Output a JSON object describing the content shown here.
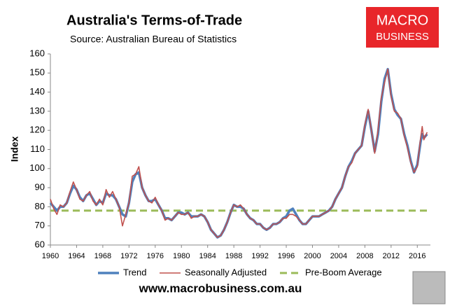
{
  "chart_data": {
    "type": "line",
    "title": "Australia's Terms-of-Trade",
    "subtitle": "Source: Australian Bureau of Statistics",
    "y_label": "Index",
    "logo": {
      "line1": "MACRO",
      "line2": "BUSINESS",
      "color": "#e8262a"
    },
    "website": "www.macrobusiness.com.au",
    "xlim": [
      1960,
      2018
    ],
    "xticks": [
      1960,
      1964,
      1968,
      1972,
      1976,
      1980,
      1984,
      1988,
      1992,
      1996,
      2000,
      2004,
      2008,
      2012,
      2016
    ],
    "ylim": [
      60,
      160
    ],
    "yticks": [
      60,
      70,
      80,
      90,
      100,
      110,
      120,
      130,
      140,
      150,
      160
    ],
    "grid": false,
    "legend": "bottom",
    "x": [
      1960,
      1960.5,
      1961,
      1961.5,
      1962,
      1962.5,
      1963,
      1963.5,
      1964,
      1964.5,
      1965,
      1965.5,
      1966,
      1966.5,
      1967,
      1967.5,
      1968,
      1968.5,
      1969,
      1969.5,
      1970,
      1970.5,
      1971,
      1971.5,
      1972,
      1972.5,
      1973,
      1973.5,
      1974,
      1974.5,
      1975,
      1975.5,
      1976,
      1976.5,
      1977,
      1977.5,
      1978,
      1978.5,
      1979,
      1979.5,
      1980,
      1980.5,
      1981,
      1981.5,
      1982,
      1982.5,
      1983,
      1983.5,
      1984,
      1984.5,
      1985,
      1985.5,
      1986,
      1986.5,
      1987,
      1987.5,
      1988,
      1988.5,
      1989,
      1989.5,
      1990,
      1990.5,
      1991,
      1991.5,
      1992,
      1992.5,
      1993,
      1993.5,
      1994,
      1994.5,
      1995,
      1995.5,
      1996,
      1996.5,
      1997,
      1997.5,
      1998,
      1998.5,
      1999,
      1999.5,
      2000,
      2000.5,
      2001,
      2001.5,
      2002,
      2002.5,
      2003,
      2003.5,
      2004,
      2004.5,
      2005,
      2005.5,
      2006,
      2006.5,
      2007,
      2007.5,
      2008,
      2008.5,
      2009,
      2009.5,
      2010,
      2010.5,
      2011,
      2011.5,
      2012,
      2012.5,
      2013,
      2013.5,
      2014,
      2014.5,
      2015,
      2015.5,
      2016,
      2016.5,
      2016.75,
      2017,
      2017.5
    ],
    "series": [
      {
        "name": "Trend",
        "color": "#4f81bd",
        "values": [
          82,
          80,
          78,
          80,
          80,
          82,
          87,
          91,
          89,
          85,
          83,
          86,
          87,
          84,
          81,
          83,
          82,
          87,
          86,
          86,
          84,
          80,
          76,
          75,
          82,
          93,
          97,
          98,
          90,
          86,
          83,
          83,
          84,
          81,
          78,
          74,
          74,
          73,
          75,
          77,
          77,
          76,
          77,
          75,
          75,
          75,
          76,
          75,
          72,
          68,
          66,
          64,
          65,
          68,
          72,
          77,
          81,
          80,
          80,
          79,
          76,
          74,
          73,
          71,
          71,
          69,
          68,
          69,
          71,
          71,
          72,
          74,
          75,
          78,
          79,
          76,
          73,
          71,
          71,
          73,
          75,
          75,
          75,
          76,
          77,
          78,
          80,
          84,
          87,
          90,
          96,
          101,
          104,
          108,
          110,
          112,
          122,
          130,
          120,
          109,
          118,
          135,
          147,
          152,
          139,
          131,
          128,
          126,
          118,
          112,
          104,
          98,
          102,
          114,
          118,
          116,
          118
        ]
      },
      {
        "name": "Seasonally Adjusted",
        "color": "#c0504d",
        "values": [
          84,
          79,
          76,
          81,
          80,
          82,
          88,
          93,
          89,
          84,
          83,
          86,
          88,
          83,
          81,
          84,
          81,
          89,
          85,
          88,
          84,
          80,
          70,
          76,
          82,
          96,
          97,
          101,
          90,
          86,
          83,
          82,
          85,
          81,
          78,
          73,
          74,
          73,
          75,
          77,
          76,
          76,
          77,
          74,
          75,
          75,
          76,
          75,
          72,
          68,
          66,
          64,
          65,
          68,
          72,
          77,
          81,
          80,
          81,
          79,
          76,
          74,
          73,
          71,
          71,
          69,
          68,
          69,
          71,
          71,
          72,
          74,
          74,
          76,
          76,
          75,
          73,
          71,
          71,
          73,
          75,
          75,
          75,
          76,
          77,
          78,
          80,
          84,
          87,
          90,
          96,
          101,
          103,
          108,
          110,
          112,
          123,
          131,
          120,
          108,
          120,
          137,
          145,
          152,
          138,
          130,
          129,
          126,
          117,
          111,
          103,
          98,
          101,
          116,
          122,
          115,
          119
        ]
      }
    ],
    "reference_line": {
      "name": "Pre-Boom Average",
      "value": 78,
      "color": "#9bbb59"
    }
  }
}
